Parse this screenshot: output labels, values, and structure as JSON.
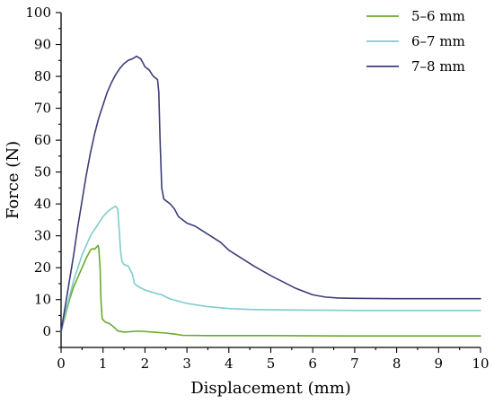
{
  "chart_data": {
    "type": "line",
    "title": "",
    "xlabel": "Displacement (mm)",
    "ylabel": "Force (N)",
    "xlim": [
      0,
      10
    ],
    "ylim": [
      -5,
      100
    ],
    "x_ticks": [
      0,
      1,
      2,
      3,
      4,
      5,
      6,
      7,
      8,
      9,
      10
    ],
    "y_ticks": [
      0,
      10,
      20,
      30,
      40,
      50,
      60,
      70,
      80,
      90,
      100
    ],
    "grid": false,
    "legend_position": "top-right",
    "series": [
      {
        "name": "5–6 mm",
        "color": "#6aaa2e",
        "points": [
          [
            0,
            0
          ],
          [
            0.1,
            5
          ],
          [
            0.2,
            10
          ],
          [
            0.3,
            14
          ],
          [
            0.4,
            17
          ],
          [
            0.5,
            20
          ],
          [
            0.6,
            23
          ],
          [
            0.7,
            25.5
          ],
          [
            0.75,
            26
          ],
          [
            0.8,
            25.8
          ],
          [
            0.85,
            26.5
          ],
          [
            0.88,
            27
          ],
          [
            0.9,
            26
          ],
          [
            0.93,
            20
          ],
          [
            0.95,
            10
          ],
          [
            0.98,
            4
          ],
          [
            1.05,
            3
          ],
          [
            1.15,
            2.5
          ],
          [
            1.25,
            1.5
          ],
          [
            1.35,
            0.2
          ],
          [
            1.5,
            -0.2
          ],
          [
            1.8,
            0.1
          ],
          [
            2.0,
            0
          ],
          [
            2.3,
            -0.3
          ],
          [
            2.5,
            -0.5
          ],
          [
            2.7,
            -0.8
          ],
          [
            2.9,
            -1.2
          ],
          [
            3.5,
            -1.3
          ],
          [
            5,
            -1.3
          ],
          [
            7,
            -1.4
          ],
          [
            10,
            -1.4
          ]
        ]
      },
      {
        "name": "6–7 mm",
        "color": "#7fcccc",
        "points": [
          [
            0,
            0
          ],
          [
            0.1,
            6
          ],
          [
            0.2,
            11
          ],
          [
            0.3,
            16
          ],
          [
            0.4,
            20
          ],
          [
            0.5,
            24
          ],
          [
            0.6,
            27
          ],
          [
            0.7,
            30
          ],
          [
            0.8,
            32
          ],
          [
            0.9,
            34
          ],
          [
            1.0,
            36
          ],
          [
            1.1,
            37.5
          ],
          [
            1.2,
            38.5
          ],
          [
            1.3,
            39.3
          ],
          [
            1.35,
            38.5
          ],
          [
            1.38,
            33
          ],
          [
            1.42,
            25
          ],
          [
            1.45,
            22
          ],
          [
            1.5,
            21
          ],
          [
            1.6,
            20.5
          ],
          [
            1.7,
            18
          ],
          [
            1.75,
            15
          ],
          [
            1.85,
            14
          ],
          [
            2.0,
            13
          ],
          [
            2.2,
            12.2
          ],
          [
            2.4,
            11.5
          ],
          [
            2.6,
            10.2
          ],
          [
            2.8,
            9.5
          ],
          [
            3.0,
            8.8
          ],
          [
            3.5,
            7.8
          ],
          [
            4.0,
            7.2
          ],
          [
            4.5,
            6.9
          ],
          [
            5,
            6.8
          ],
          [
            6,
            6.7
          ],
          [
            7,
            6.6
          ],
          [
            8,
            6.6
          ],
          [
            9,
            6.6
          ],
          [
            10,
            6.6
          ]
        ]
      },
      {
        "name": "7–8 mm",
        "color": "#3d3d7a",
        "points": [
          [
            0,
            0
          ],
          [
            0.1,
            8
          ],
          [
            0.2,
            16
          ],
          [
            0.3,
            24
          ],
          [
            0.4,
            33
          ],
          [
            0.5,
            41
          ],
          [
            0.6,
            49
          ],
          [
            0.7,
            56
          ],
          [
            0.8,
            62
          ],
          [
            0.9,
            67
          ],
          [
            1.0,
            71
          ],
          [
            1.1,
            75
          ],
          [
            1.2,
            78
          ],
          [
            1.3,
            80.5
          ],
          [
            1.4,
            82.5
          ],
          [
            1.5,
            84
          ],
          [
            1.6,
            85
          ],
          [
            1.7,
            85.5
          ],
          [
            1.8,
            86.3
          ],
          [
            1.9,
            85.5
          ],
          [
            2.0,
            83
          ],
          [
            2.1,
            82
          ],
          [
            2.2,
            80
          ],
          [
            2.3,
            79
          ],
          [
            2.33,
            75
          ],
          [
            2.36,
            60
          ],
          [
            2.4,
            45
          ],
          [
            2.45,
            41.5
          ],
          [
            2.6,
            40
          ],
          [
            2.7,
            38.5
          ],
          [
            2.8,
            36
          ],
          [
            3.0,
            34
          ],
          [
            3.2,
            33
          ],
          [
            3.5,
            30.5
          ],
          [
            3.8,
            28
          ],
          [
            4.0,
            25.5
          ],
          [
            4.3,
            23
          ],
          [
            4.6,
            20.5
          ],
          [
            5.0,
            17.5
          ],
          [
            5.3,
            15.5
          ],
          [
            5.6,
            13.5
          ],
          [
            6.0,
            11.5
          ],
          [
            6.3,
            10.8
          ],
          [
            6.6,
            10.5
          ],
          [
            7,
            10.4
          ],
          [
            8,
            10.3
          ],
          [
            9,
            10.3
          ],
          [
            10,
            10.3
          ]
        ]
      }
    ]
  }
}
